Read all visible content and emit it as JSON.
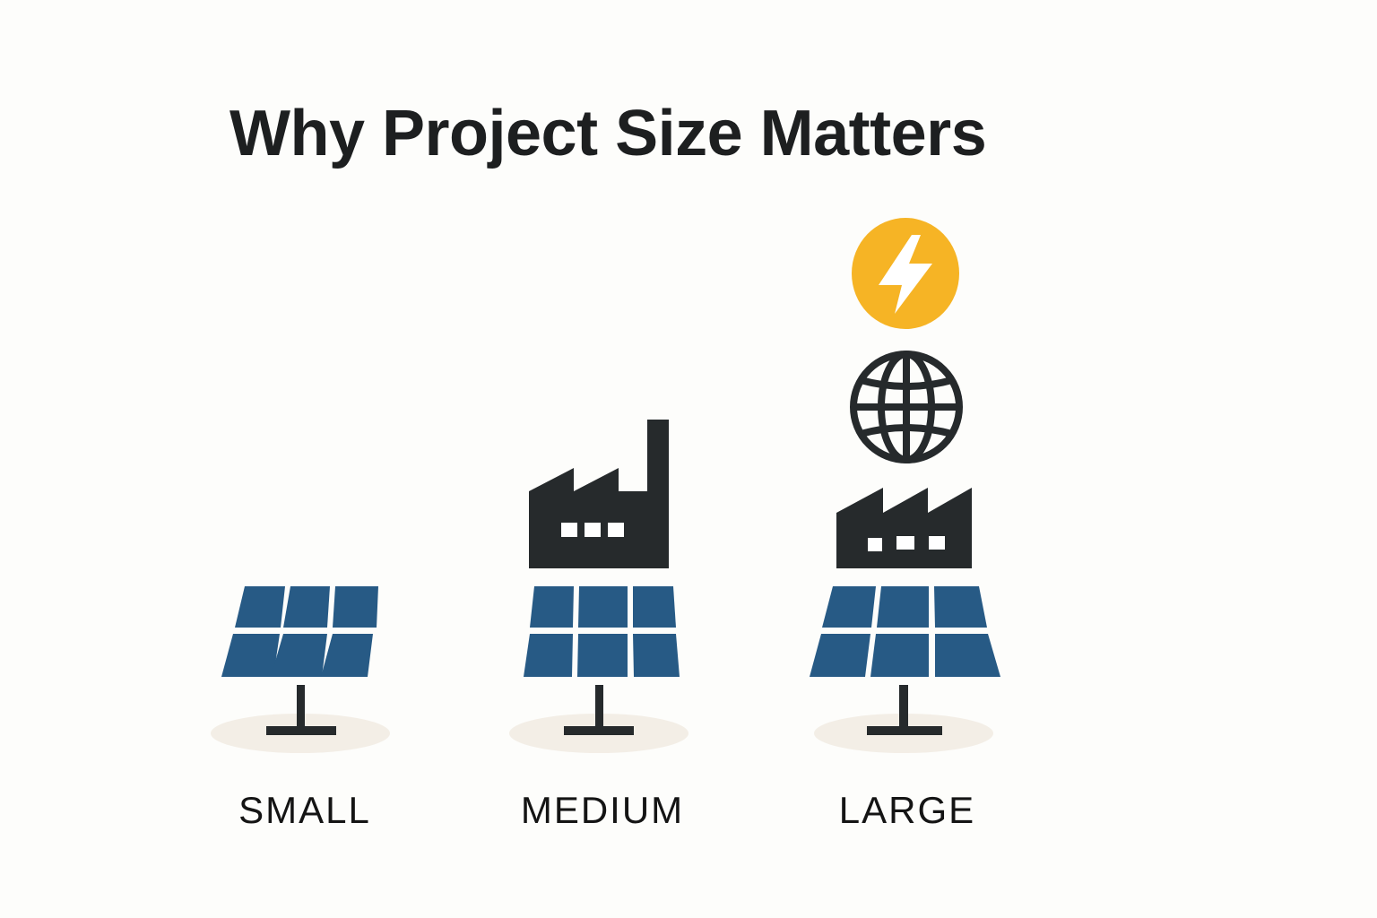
{
  "title": "Why Project Size Matters",
  "colors": {
    "background": "#fdfdfb",
    "panel_blue": "#275a85",
    "dark": "#262a2c",
    "energy_yellow": "#f6b425",
    "ground": "#f3eee6"
  },
  "tiers": [
    {
      "label": "SMALL",
      "icons": [
        "solar-panel-icon"
      ]
    },
    {
      "label": "MEDIUM",
      "icons": [
        "solar-panel-icon",
        "factory-icon"
      ]
    },
    {
      "label": "LARGE",
      "icons": [
        "solar-panel-icon",
        "factory-icon",
        "globe-icon",
        "lightning-bolt-icon"
      ]
    }
  ]
}
